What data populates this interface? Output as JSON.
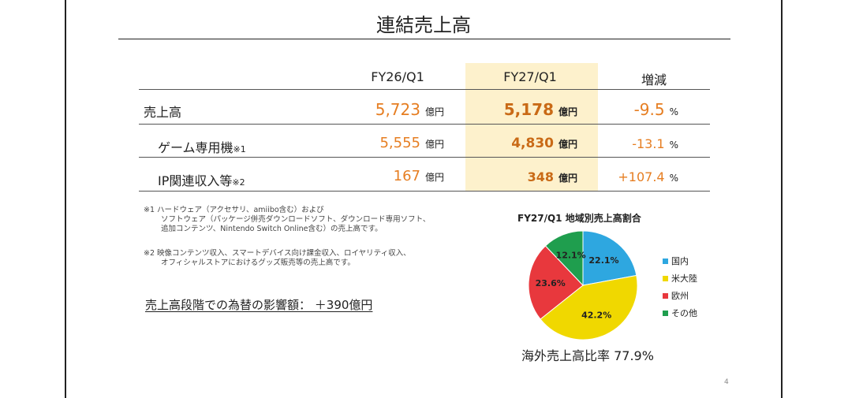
{
  "title": "連結売上高",
  "table": {
    "headers": [
      "FY26/Q1",
      "FY27/Q1",
      "増減"
    ],
    "unit": "億円",
    "pct_unit": "%",
    "rows": [
      {
        "label": "売上高",
        "note": "",
        "fy26": "5,723",
        "fy27": "5,178",
        "change": "-9.5"
      },
      {
        "label": "ゲーム専用機",
        "note": "※1",
        "fy26": "5,555",
        "fy27": "4,830",
        "change": "-13.1"
      },
      {
        "label": "IP関連収入等",
        "note": "※2",
        "fy26": "167",
        "fy27": "348",
        "change": "+107.4"
      }
    ]
  },
  "footnotes": {
    "n1_line1": "※1 ハードウェア（アクセサリ、amiibo含む）および",
    "n1_line2": "ソフトウェア（パッケージ併売ダウンロードソフト、ダウンロード専用ソフト、",
    "n1_line3": "追加コンテンツ、Nintendo Switch Online含む）の売上高です。",
    "n2_line1": "※2 映像コンテンツ収入、スマートデバイス向け課金収入、ロイヤリティ収入、",
    "n2_line2": "オフィシャルストアにおけるグッズ販売等の売上高です。"
  },
  "fx_impact": "売上高段階での為替の影響額：  ＋390億円",
  "chart_data": {
    "type": "pie",
    "title": "FY27/Q1 地域別売上高割合",
    "categories": [
      "国内",
      "米大陸",
      "欧州",
      "その他"
    ],
    "values": [
      22.1,
      42.2,
      23.6,
      12.1
    ],
    "labels": [
      "22.1%",
      "42.2%",
      "23.6%",
      "12.1%"
    ],
    "colors": [
      "#2ea7e0",
      "#f0d800",
      "#e8383d",
      "#1f9e4e"
    ],
    "legend_position": "right"
  },
  "overseas_ratio": "海外売上高比率 77.9%",
  "page_number": "4"
}
